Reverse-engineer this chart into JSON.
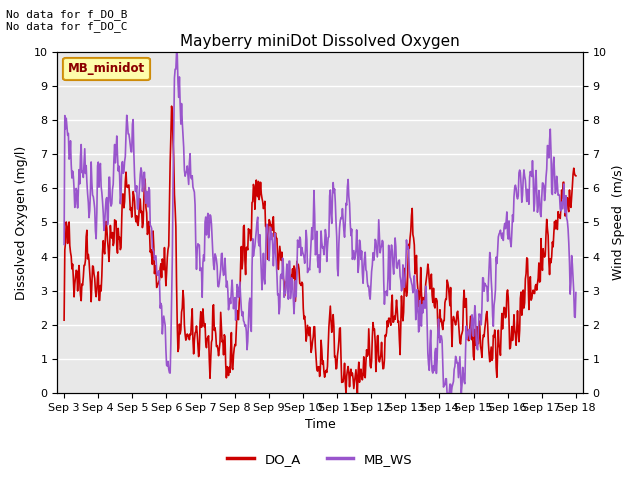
{
  "title": "Mayberry miniDot Dissolved Oxygen",
  "xlabel": "Time",
  "ylabel_left": "Dissolved Oxygen (mg/l)",
  "ylabel_right": "Wind Speed  (m/s)",
  "ylim": [
    0.0,
    10.0
  ],
  "yticks": [
    0.0,
    1.0,
    2.0,
    3.0,
    4.0,
    5.0,
    6.0,
    7.0,
    8.0,
    9.0,
    10.0
  ],
  "annotation_lines": [
    "No data for f_DO_B",
    "No data for f_DO_C"
  ],
  "legend_box_label": "MB_minidot",
  "legend_box_text_color": "#8b0000",
  "legend_box_face": "#ffffaa",
  "legend_box_edge": "#cc8800",
  "legend_entries": [
    {
      "label": "DO_A",
      "color": "#cc0000",
      "lw": 1.2
    },
    {
      "label": "MB_WS",
      "color": "#9955cc",
      "lw": 1.2
    }
  ],
  "background_color": "#e8e8e8",
  "fig_bg": "#ffffff",
  "xtick_labels": [
    "Sep 3",
    "Sep 4",
    "Sep 5",
    "Sep 6",
    "Sep 7",
    "Sep 8",
    "Sep 9",
    "Sep 10",
    "Sep 11",
    "Sep 12",
    "Sep 13",
    "Sep 14",
    "Sep 15",
    "Sep 16",
    "Sep 17",
    "Sep 18"
  ],
  "n_points": 720,
  "do_a_seed": 42,
  "mb_ws_seed": 7,
  "title_fontsize": 11,
  "axis_label_fontsize": 9,
  "tick_fontsize": 8
}
